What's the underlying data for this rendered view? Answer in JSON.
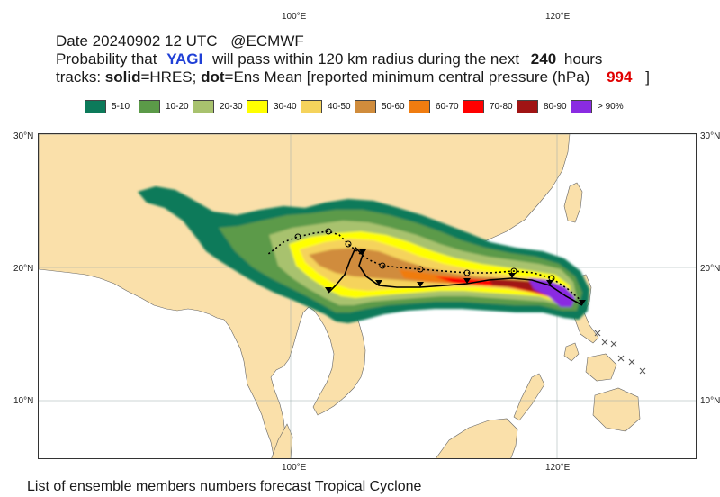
{
  "header": {
    "date_line": "Date 20240902 12 UTC",
    "source": "@ECMWF",
    "prob_prefix": "Probability that",
    "storm_name": "YAGI",
    "prob_middle": "will pass within 120 km radius during the next",
    "hours": "240",
    "hours_unit": "hours",
    "tracks_prefix": "tracks:",
    "solid_label": "solid",
    "solid_desc": "=HRES;",
    "dot_label": "dot",
    "dot_desc": "=Ens Mean [reported minimum central pressure (hPa)",
    "pressure": "994",
    "close_bracket": "]"
  },
  "legend": [
    {
      "label": "5-10",
      "color": "#0c7a5a"
    },
    {
      "label": "10-20",
      "color": "#5b9a48"
    },
    {
      "label": "20-30",
      "color": "#a8c26e"
    },
    {
      "label": "30-40",
      "color": "#ffff00"
    },
    {
      "label": "40-50",
      "color": "#f5d35c"
    },
    {
      "label": "50-60",
      "color": "#d08c3c"
    },
    {
      "label": "60-70",
      "color": "#f07c10"
    },
    {
      "label": "70-80",
      "color": "#ff0000"
    },
    {
      "label": "80-90",
      "color": "#a01414"
    },
    {
      "label": "> 90%",
      "color": "#8a2be2"
    }
  ],
  "axes": {
    "lon_labels": [
      "100°E",
      "120°E"
    ],
    "lat_labels": [
      "30°N",
      "20°N",
      "10°N"
    ]
  },
  "colors": {
    "land": "#fae0aa",
    "sea": "#ffffff",
    "border": "#555555"
  },
  "footer": "List of ensemble members numbers forecast Tropical Cyclone"
}
